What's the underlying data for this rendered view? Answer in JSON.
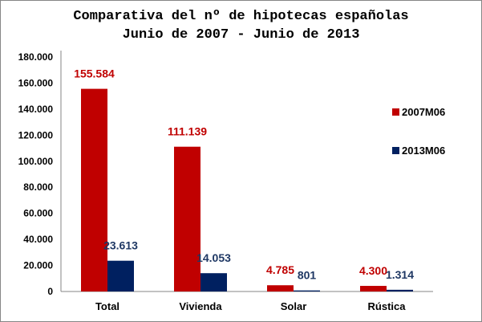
{
  "chart_data": {
    "type": "bar",
    "title": [
      "Comparativa del nº de hipotecas españolas",
      "Junio de 2007 - Junio de 2013"
    ],
    "categories": [
      "Total",
      "Vivienda",
      "Solar",
      "Rústica"
    ],
    "series": [
      {
        "name": "2007M06",
        "values": [
          155584,
          111139,
          4785,
          4300
        ],
        "labels": [
          "155.584",
          "111.139",
          "4.785",
          "4.300"
        ],
        "color": "#C00000",
        "label_color": "#C00000"
      },
      {
        "name": "2013M06",
        "values": [
          23613,
          14053,
          801,
          1314
        ],
        "labels": [
          "23.613",
          "14.053",
          "801",
          "1.314"
        ],
        "color": "#002060",
        "label_color": "#1F3864"
      }
    ],
    "ylim": [
      0,
      180000
    ],
    "yticks": [
      0,
      20000,
      40000,
      60000,
      80000,
      100000,
      120000,
      140000,
      160000,
      180000
    ],
    "ytick_labels": [
      "0",
      "20.000",
      "40.000",
      "60.000",
      "80.000",
      "100.000",
      "120.000",
      "140.000",
      "160.000",
      "180.000"
    ],
    "xlabel": "",
    "ylabel": "",
    "grid": false,
    "legend": "right"
  }
}
